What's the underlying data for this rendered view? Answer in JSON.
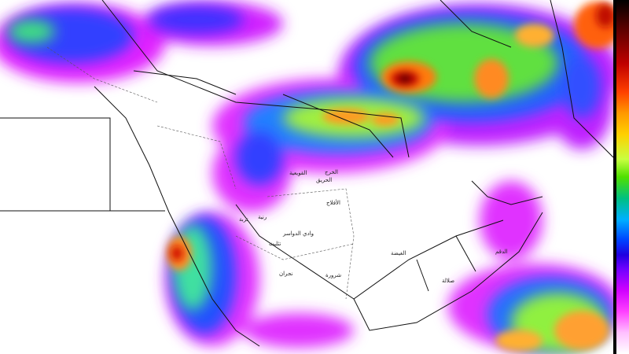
{
  "map": {
    "type": "precipitation forecast map",
    "region": "Arabian Peninsula and surroundings",
    "colorbar": {
      "orientation": "vertical",
      "colors_top_to_bottom": [
        "#000000",
        "#c00000",
        "#ff4000",
        "#ff9900",
        "#ffd000",
        "#c8ff40",
        "#50e000",
        "#00c080",
        "#00b0ff",
        "#0040ff",
        "#7000ff",
        "#d000ff",
        "#ff40ff",
        "#ffffff"
      ]
    },
    "labels": [
      "القويعية",
      "الخرج",
      "الحريق",
      "الأفلاج",
      "رنية",
      "تربة",
      "وادي الدواسر",
      "تثليث",
      "نجران",
      "شرورة",
      "الغيضة",
      "صلالة",
      "الدقم"
    ]
  }
}
